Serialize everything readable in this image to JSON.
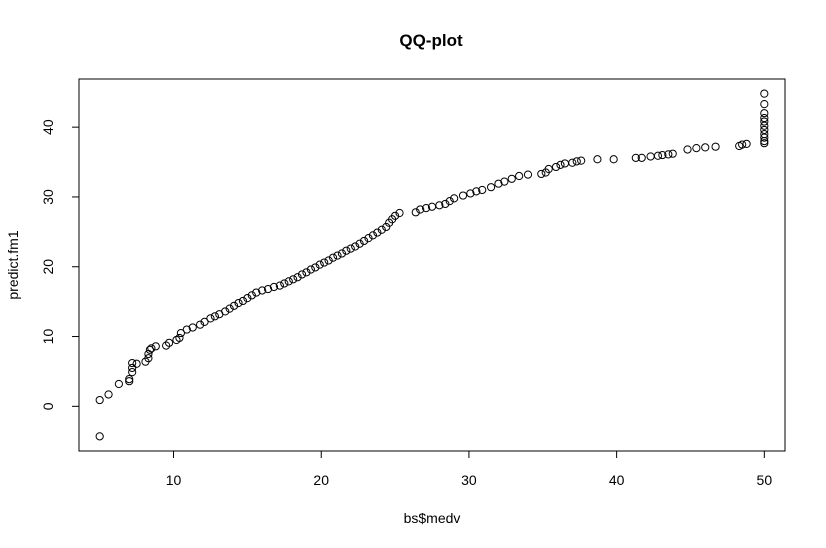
{
  "chart_data": {
    "type": "scatter",
    "title": "QQ-plot",
    "xlabel": "bs$medv",
    "ylabel": "predict.fm1",
    "xlim": [
      3.6,
      51.4
    ],
    "ylim": [
      -6.4,
      46.9
    ],
    "xticks": [
      10,
      20,
      30,
      40,
      50
    ],
    "yticks": [
      0,
      10,
      20,
      30,
      40
    ],
    "marker": "open-circle",
    "grid": false,
    "legend": "none",
    "colors": {
      "points": "#000000",
      "frame": "#000000",
      "background": "#ffffff"
    },
    "points": [
      [
        5.0,
        -4.3
      ],
      [
        5.0,
        0.9
      ],
      [
        5.6,
        1.7
      ],
      [
        6.3,
        3.2
      ],
      [
        7.0,
        3.6
      ],
      [
        7.0,
        3.9
      ],
      [
        7.2,
        4.9
      ],
      [
        7.2,
        5.5
      ],
      [
        7.2,
        6.2
      ],
      [
        7.5,
        6.1
      ],
      [
        8.1,
        6.4
      ],
      [
        8.3,
        6.9
      ],
      [
        8.3,
        7.5
      ],
      [
        8.4,
        8.1
      ],
      [
        8.5,
        8.3
      ],
      [
        8.8,
        8.6
      ],
      [
        9.5,
        8.7
      ],
      [
        9.7,
        9.1
      ],
      [
        10.2,
        9.5
      ],
      [
        10.4,
        9.8
      ],
      [
        10.5,
        10.5
      ],
      [
        10.9,
        11.0
      ],
      [
        11.3,
        11.3
      ],
      [
        11.8,
        11.7
      ],
      [
        12.1,
        12.1
      ],
      [
        12.5,
        12.6
      ],
      [
        12.8,
        12.9
      ],
      [
        13.1,
        13.2
      ],
      [
        13.5,
        13.6
      ],
      [
        13.8,
        14.0
      ],
      [
        14.1,
        14.4
      ],
      [
        14.4,
        14.8
      ],
      [
        14.7,
        15.1
      ],
      [
        15.0,
        15.5
      ],
      [
        15.3,
        15.9
      ],
      [
        15.6,
        16.3
      ],
      [
        16.0,
        16.6
      ],
      [
        16.4,
        16.8
      ],
      [
        16.8,
        17.1
      ],
      [
        17.2,
        17.3
      ],
      [
        17.5,
        17.6
      ],
      [
        17.8,
        17.9
      ],
      [
        18.1,
        18.2
      ],
      [
        18.4,
        18.5
      ],
      [
        18.7,
        18.9
      ],
      [
        19.0,
        19.2
      ],
      [
        19.3,
        19.6
      ],
      [
        19.6,
        19.9
      ],
      [
        19.9,
        20.3
      ],
      [
        20.2,
        20.6
      ],
      [
        20.5,
        20.9
      ],
      [
        20.8,
        21.3
      ],
      [
        21.1,
        21.6
      ],
      [
        21.4,
        21.9
      ],
      [
        21.7,
        22.3
      ],
      [
        22.0,
        22.6
      ],
      [
        22.3,
        22.9
      ],
      [
        22.6,
        23.3
      ],
      [
        22.9,
        23.7
      ],
      [
        23.2,
        24.1
      ],
      [
        23.5,
        24.5
      ],
      [
        23.8,
        24.9
      ],
      [
        24.1,
        25.3
      ],
      [
        24.4,
        25.7
      ],
      [
        24.6,
        26.3
      ],
      [
        24.8,
        26.8
      ],
      [
        25.0,
        27.3
      ],
      [
        25.3,
        27.7
      ],
      [
        26.4,
        27.8
      ],
      [
        26.7,
        28.2
      ],
      [
        27.1,
        28.4
      ],
      [
        27.5,
        28.6
      ],
      [
        28.0,
        28.8
      ],
      [
        28.4,
        29.0
      ],
      [
        28.7,
        29.4
      ],
      [
        29.0,
        29.8
      ],
      [
        29.6,
        30.2
      ],
      [
        30.1,
        30.5
      ],
      [
        30.5,
        30.8
      ],
      [
        30.9,
        31.0
      ],
      [
        31.5,
        31.4
      ],
      [
        32.0,
        31.9
      ],
      [
        32.4,
        32.2
      ],
      [
        32.9,
        32.6
      ],
      [
        33.4,
        33.0
      ],
      [
        34.0,
        33.2
      ],
      [
        34.9,
        33.3
      ],
      [
        35.2,
        33.5
      ],
      [
        35.4,
        34.0
      ],
      [
        35.9,
        34.3
      ],
      [
        36.2,
        34.6
      ],
      [
        36.5,
        34.8
      ],
      [
        37.0,
        34.9
      ],
      [
        37.3,
        35.1
      ],
      [
        37.6,
        35.2
      ],
      [
        38.7,
        35.4
      ],
      [
        39.8,
        35.4
      ],
      [
        41.3,
        35.6
      ],
      [
        41.7,
        35.6
      ],
      [
        42.3,
        35.8
      ],
      [
        42.8,
        35.9
      ],
      [
        43.1,
        36.0
      ],
      [
        43.5,
        36.1
      ],
      [
        43.8,
        36.2
      ],
      [
        44.8,
        36.8
      ],
      [
        45.4,
        37.0
      ],
      [
        46.0,
        37.1
      ],
      [
        46.7,
        37.2
      ],
      [
        48.3,
        37.3
      ],
      [
        48.5,
        37.5
      ],
      [
        48.8,
        37.6
      ],
      [
        50.0,
        37.7
      ],
      [
        50.0,
        38.0
      ],
      [
        50.0,
        38.5
      ],
      [
        50.0,
        39.0
      ],
      [
        50.0,
        39.6
      ],
      [
        50.0,
        40.2
      ],
      [
        50.0,
        40.8
      ],
      [
        50.0,
        41.3
      ],
      [
        50.0,
        42.0
      ],
      [
        50.0,
        43.3
      ],
      [
        50.0,
        44.8
      ]
    ]
  }
}
